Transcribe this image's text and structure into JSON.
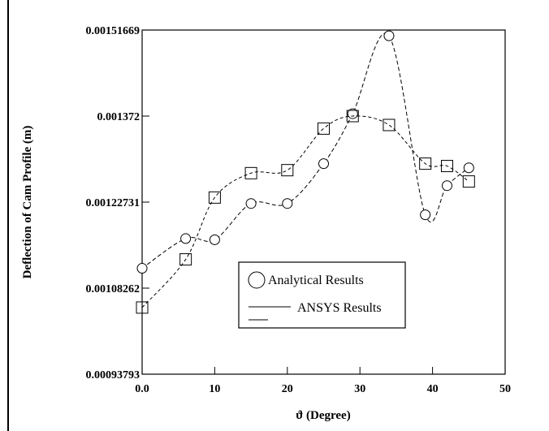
{
  "chart_data": {
    "type": "line",
    "title": "",
    "xlabel": "ϑ (Degree)",
    "ylabel": "Deflection of Cam Profile (m)",
    "xlim": [
      0,
      50
    ],
    "ylim": [
      0.00093793,
      0.00151669
    ],
    "xticks": [
      0,
      10,
      20,
      30,
      40,
      50
    ],
    "xtick_labels": [
      "0.0",
      "10",
      "20",
      "30",
      "40",
      "50"
    ],
    "yticks": [
      0.00093793,
      0.00108262,
      0.00122731,
      0.001372,
      0.00151669
    ],
    "ytick_labels": [
      "0.00093793",
      "0.00108262",
      "0.00122731",
      "0.001372",
      "0.00151669"
    ],
    "grid": false,
    "legend": "center-right",
    "series": [
      {
        "name": "Analytical Results",
        "marker": "circle",
        "x": [
          0,
          6,
          10,
          15,
          20,
          25,
          29,
          34,
          39,
          42,
          45
        ],
        "y": [
          0.001116,
          0.001166,
          0.001164,
          0.001225,
          0.001225,
          0.001292,
          0.001376,
          0.001507,
          0.001206,
          0.001255,
          0.001285
        ]
      },
      {
        "name": "ANSYS Results",
        "marker": "square",
        "x": [
          0,
          6,
          10,
          15,
          20,
          25,
          29,
          34,
          39,
          42,
          45
        ],
        "y": [
          0.00105,
          0.001131,
          0.001235,
          0.001276,
          0.001281,
          0.001351,
          0.001372,
          0.001357,
          0.001292,
          0.001288,
          0.001262
        ]
      }
    ]
  }
}
